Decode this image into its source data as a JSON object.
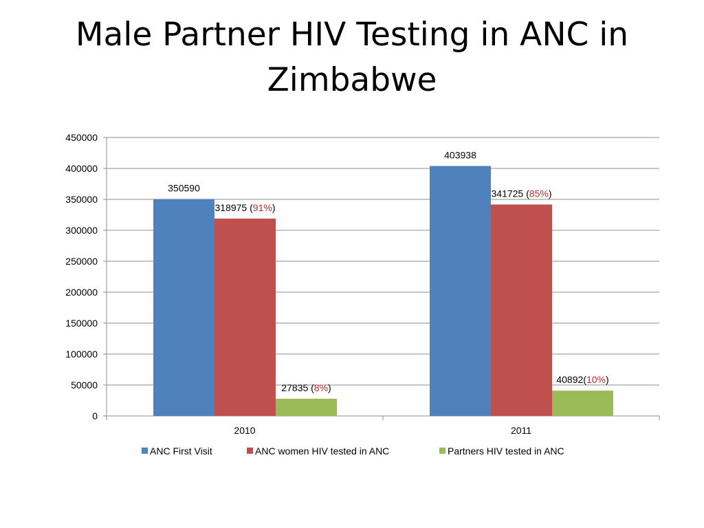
{
  "slide": {
    "title_line1": "Male Partner HIV Testing in ANC in",
    "title_line2": "Zimbabwe"
  },
  "chart_data": {
    "type": "bar",
    "title": "",
    "xlabel": "",
    "ylabel": "",
    "categories": [
      "2010",
      "2011"
    ],
    "ylim": [
      0,
      450000
    ],
    "y_ticks": [
      0,
      50000,
      100000,
      150000,
      200000,
      250000,
      300000,
      350000,
      400000,
      450000
    ],
    "grid": true,
    "legend_position": "bottom",
    "series": [
      {
        "name": "ANC First Visit",
        "color": "#4f81bd",
        "values": [
          350590,
          403938
        ],
        "data_labels": [
          {
            "value": "350590",
            "pct": "",
            "pre": "",
            "post": ""
          },
          {
            "value": "403938",
            "pct": "",
            "pre": "",
            "post": ""
          }
        ]
      },
      {
        "name": "ANC women HIV tested in ANC",
        "color": "#c0504d",
        "values": [
          318975,
          341725
        ],
        "data_labels": [
          {
            "value": "318975",
            "pre": " (",
            "pct": "91%",
            "post": ")"
          },
          {
            "value": "341725",
            "pre": " (",
            "pct": "85%",
            "post": ")"
          }
        ]
      },
      {
        "name": "Partners HIV tested in ANC",
        "color": "#9bbb59",
        "values": [
          27835,
          40892
        ],
        "data_labels": [
          {
            "value": "27835",
            "pre": " (",
            "pct": "8%",
            "post": ")"
          },
          {
            "value": "40892",
            "pre": "(",
            "pct": "10%",
            "post": ")"
          }
        ]
      }
    ]
  }
}
